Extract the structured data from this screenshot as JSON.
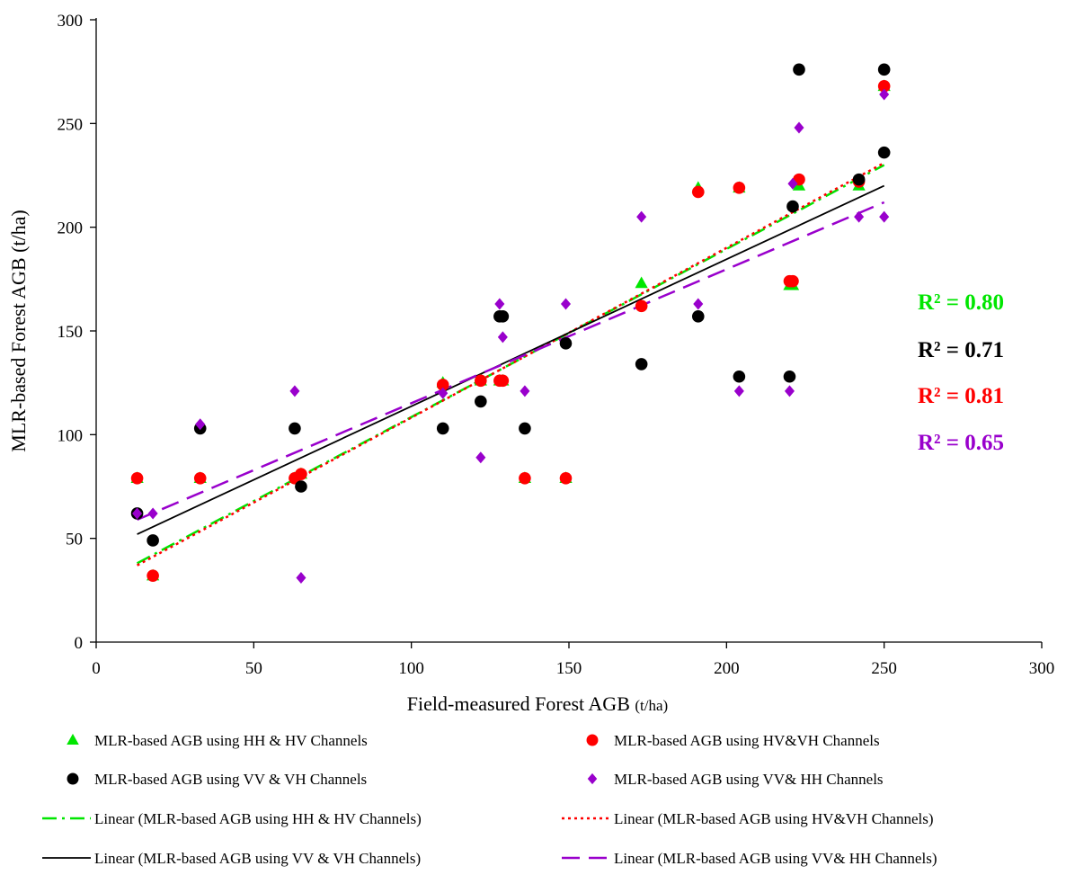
{
  "chart_data": {
    "type": "scatter",
    "title": "",
    "xlabel": "Field-measured Forest AGB",
    "xlabel_unit": "(t/ha)",
    "ylabel": "MLR-based Forest AGB  (t/ha)",
    "xlim": [
      0,
      300
    ],
    "ylim": [
      0,
      300
    ],
    "xticks": [
      0,
      50,
      100,
      150,
      200,
      250,
      300
    ],
    "yticks": [
      0,
      50,
      100,
      150,
      200,
      250,
      300
    ],
    "grid": false,
    "legend_position": "bottom",
    "series": [
      {
        "name": "MLR-based AGB using HH & HV Channels",
        "marker": "triangle",
        "color": "#00e600",
        "points": [
          [
            13,
            79
          ],
          [
            18,
            32
          ],
          [
            33,
            79
          ],
          [
            63,
            79
          ],
          [
            65,
            81
          ],
          [
            110,
            125
          ],
          [
            122,
            126
          ],
          [
            128,
            126
          ],
          [
            129,
            126
          ],
          [
            136,
            79
          ],
          [
            149,
            79
          ],
          [
            173,
            173
          ],
          [
            191,
            219
          ],
          [
            204,
            219
          ],
          [
            220,
            172
          ],
          [
            221,
            172
          ],
          [
            223,
            220
          ],
          [
            242,
            220
          ],
          [
            250,
            268
          ]
        ]
      },
      {
        "name": "MLR-based AGB using HV&VH Channels",
        "marker": "circle",
        "color": "#ff0000",
        "points": [
          [
            13,
            79
          ],
          [
            18,
            32
          ],
          [
            33,
            79
          ],
          [
            63,
            79
          ],
          [
            65,
            81
          ],
          [
            110,
            124
          ],
          [
            122,
            126
          ],
          [
            128,
            126
          ],
          [
            129,
            126
          ],
          [
            136,
            79
          ],
          [
            149,
            79
          ],
          [
            173,
            162
          ],
          [
            191,
            217
          ],
          [
            204,
            219
          ],
          [
            220,
            174
          ],
          [
            221,
            174
          ],
          [
            223,
            223
          ],
          [
            242,
            222
          ],
          [
            250,
            268
          ]
        ]
      },
      {
        "name": "MLR-based AGB using VV & VH Channels",
        "marker": "circle",
        "color": "#000000",
        "points": [
          [
            13,
            62
          ],
          [
            18,
            49
          ],
          [
            33,
            103
          ],
          [
            63,
            103
          ],
          [
            65,
            75
          ],
          [
            110,
            103
          ],
          [
            122,
            116
          ],
          [
            128,
            157
          ],
          [
            129,
            157
          ],
          [
            136,
            103
          ],
          [
            149,
            144
          ],
          [
            173,
            134
          ],
          [
            191,
            157
          ],
          [
            204,
            128
          ],
          [
            220,
            128
          ],
          [
            221,
            210
          ],
          [
            223,
            276
          ],
          [
            242,
            223
          ],
          [
            250,
            236
          ],
          [
            250,
            276
          ]
        ]
      },
      {
        "name": "MLR-based AGB using VV& HH Channels",
        "marker": "diamond",
        "color": "#9900cc",
        "points": [
          [
            13,
            62
          ],
          [
            18,
            62
          ],
          [
            33,
            105
          ],
          [
            63,
            121
          ],
          [
            65,
            31
          ],
          [
            110,
            120
          ],
          [
            122,
            89
          ],
          [
            128,
            163
          ],
          [
            129,
            147
          ],
          [
            136,
            121
          ],
          [
            149,
            163
          ],
          [
            173,
            205
          ],
          [
            191,
            163
          ],
          [
            204,
            121
          ],
          [
            220,
            121
          ],
          [
            221,
            221
          ],
          [
            223,
            248
          ],
          [
            242,
            205
          ],
          [
            250,
            205
          ],
          [
            250,
            264
          ]
        ]
      }
    ],
    "trendlines": [
      {
        "name": "Linear (MLR-based AGB using HH & HV Channels)",
        "color": "#00e600",
        "dash": "16 6 3 6",
        "width": 2.5,
        "x": [
          13,
          250
        ],
        "y": [
          38,
          230
        ]
      },
      {
        "name": "Linear (MLR-based AGB using HV&VH Channels)",
        "color": "#ff0000",
        "dash": "3 4",
        "width": 2.5,
        "x": [
          13,
          250
        ],
        "y": [
          37,
          231
        ]
      },
      {
        "name": "Linear (MLR-based AGB using VV & VH Channels)",
        "color": "#000000",
        "dash": "",
        "width": 1.8,
        "x": [
          13,
          250
        ],
        "y": [
          52,
          220
        ]
      },
      {
        "name": "Linear (MLR-based AGB using VV& HH Channels)",
        "color": "#9900cc",
        "dash": "20 10",
        "width": 2.5,
        "x": [
          13,
          250
        ],
        "y": [
          59,
          212
        ]
      }
    ],
    "annotations": [
      {
        "text": "R² = 0.80",
        "color": "#00e600"
      },
      {
        "text": "R² = 0.71",
        "color": "#000000"
      },
      {
        "text": "R² = 0.81",
        "color": "#ff0000"
      },
      {
        "text": "R² = 0.65",
        "color": "#9900cc"
      }
    ]
  }
}
